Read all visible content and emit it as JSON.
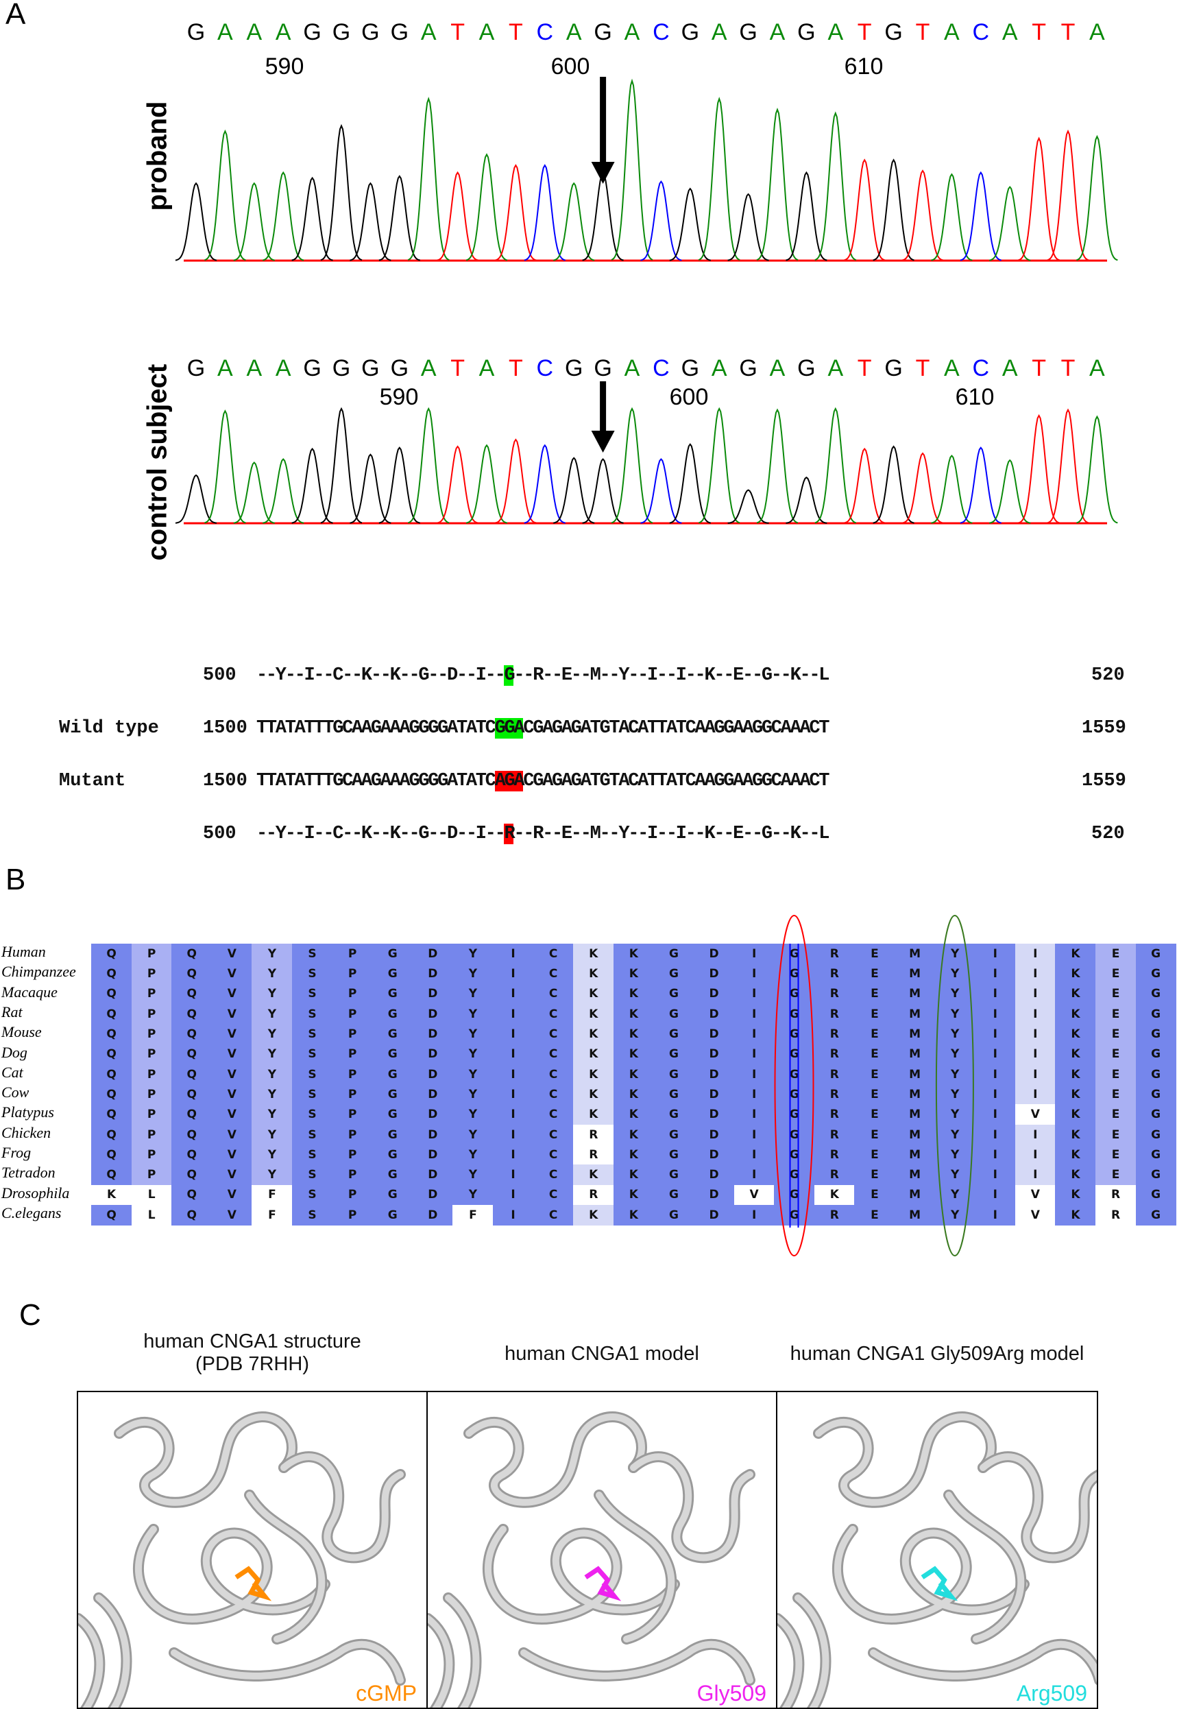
{
  "panel_a": {
    "label": "A",
    "base_colors": {
      "G": "#000000",
      "A": "#0a8a0a",
      "T": "#ff0000",
      "C": "#0000ff"
    },
    "proband": {
      "label": "proband",
      "sequence": "GAAAGGGGATATCAGACGAGAGATGTACATTA",
      "ticks": [
        "590",
        "600",
        "610"
      ],
      "peak_heights": [
        0.43,
        0.72,
        0.43,
        0.49,
        0.46,
        0.75,
        0.43,
        0.47,
        0.9,
        0.49,
        0.59,
        0.53,
        0.53,
        0.43,
        0.49,
        1.0,
        0.44,
        0.4,
        0.9,
        0.37,
        0.84,
        0.49,
        0.82,
        0.56,
        0.56,
        0.5,
        0.48,
        0.49,
        0.41,
        0.68,
        0.72,
        0.69
      ],
      "arrow_at_base": 14
    },
    "control": {
      "label": "control subject",
      "sequence": "GAAAGGGGATATCGGACGAGAGATGTACATTA",
      "ticks": [
        "590",
        "600",
        "610"
      ],
      "peak_heights": [
        0.42,
        0.98,
        0.53,
        0.56,
        0.65,
        1.0,
        0.6,
        0.66,
        1.0,
        0.67,
        0.68,
        0.73,
        0.68,
        0.57,
        0.56,
        1.0,
        0.56,
        0.69,
        1.0,
        0.29,
        0.99,
        0.4,
        1.0,
        0.65,
        0.67,
        0.61,
        0.59,
        0.66,
        0.55,
        0.94,
        0.99,
        0.93
      ],
      "arrow_at_base": 14
    },
    "alignment": {
      "protein_wt": {
        "start": "500",
        "pre": "--Y--I--C--K--K--G--D--I--",
        "hl": "G",
        "post": "--R--E--M--Y--I--I--K--E--G--K--L",
        "end": "520"
      },
      "dna_wt": {
        "label": "Wild type",
        "start": "1500",
        "pre": "TTATATTTGCAAGAAAGGGGATATC",
        "hl": "GGA",
        "post": "CGAGAGATGTACATTATCAAGGAAGGCAAACT",
        "end": "1559"
      },
      "dna_mut": {
        "label": "Mutant",
        "start": "1500",
        "pre": "TTATATTTGCAAGAAAGGGGATATC",
        "hl": "AGA",
        "post": "CGAGAGATGTACATTATCAAGGAAGGCAAACT",
        "end": "1559"
      },
      "protein_mut": {
        "start": "500",
        "pre": "--Y--I--C--K--K--G--D--I--",
        "hl": "R",
        "post": "--R--E--M--Y--I--I--K--E--G--K--L",
        "end": "520"
      },
      "wt_color": "#00ee00",
      "mut_color": "#ff0000"
    }
  },
  "panel_b": {
    "label": "B",
    "shade_colors": {
      "dark": "#7586ec",
      "light": "#a9b0f3",
      "vlight": "#d5d9f6",
      "diff": "#ffffff"
    },
    "column_shading": [
      "dark",
      "light",
      "dark",
      "dark",
      "light",
      "dark",
      "dark",
      "dark",
      "dark",
      "dark",
      "dark",
      "dark",
      "vlight",
      "dark",
      "dark",
      "dark",
      "dark",
      "dark",
      "dark",
      "dark",
      "dark",
      "dark",
      "dark",
      "vlight",
      "dark",
      "light",
      "dark"
    ],
    "rows": [
      {
        "species": "Human",
        "seq": "QPQVYSPGDYICKKGDIGREMYIIKEG"
      },
      {
        "species": "Chimpanzee",
        "seq": "QPQVYSPGDYICKKGDIGREMYIIKEG"
      },
      {
        "species": "Macaque",
        "seq": "QPQVYSPGDYICKKGDIGREMYIIKEG"
      },
      {
        "species": "Rat",
        "seq": "QPQVYSPGDYICKKGDIGREMYIIKEG"
      },
      {
        "species": "Mouse",
        "seq": "QPQVYSPGDYICKKGDIGREMYIIKEG"
      },
      {
        "species": "Dog",
        "seq": "QPQVYSPGDYICKKGDIGREMYIIKEG"
      },
      {
        "species": "Cat",
        "seq": "QPQVYSPGDYICKKGDIGREMYIIKEG"
      },
      {
        "species": "Cow",
        "seq": "QPQVYSPGDYICKKGDIGREMYIIKEG"
      },
      {
        "species": "Platypus",
        "seq": "QPQVYSPGDYICKKGDIGREMYIVKEG"
      },
      {
        "species": "Chicken",
        "seq": "QPQVYSPGDYICRKGDIGREMYIIKEG"
      },
      {
        "species": "Frog",
        "seq": "QPQVYSPGDYICRKGDIGREMYIIKEG"
      },
      {
        "species": "Tetradon",
        "seq": "QPQVYSPGDYICKKGDIGREMYIIKEG"
      },
      {
        "species": "Drosophila",
        "seq": "KLQVFSPGDYICRKGDVGKEMYIVKRG"
      },
      {
        "species": "C.elegans",
        "seq": "QLQVFSPGDFICKKGDIGREMYIVKRG"
      }
    ],
    "highlight_red_column": 17,
    "highlight_green_column": 21
  },
  "panel_c": {
    "label": "C",
    "panels": [
      {
        "title_line1": "human CNGA1 structure",
        "title_line2": "(PDB 7RHH)",
        "ligand_label": "cGMP",
        "ligand_color": "#ff8c00"
      },
      {
        "title_line1": "human CNGA1 model",
        "title_line2": "",
        "ligand_label": "Gly509",
        "ligand_color": "#ee22ee"
      },
      {
        "title_line1": "human CNGA1 Gly509Arg model",
        "title_line2": "",
        "ligand_label": "Arg509",
        "ligand_color": "#22dddd"
      }
    ]
  }
}
